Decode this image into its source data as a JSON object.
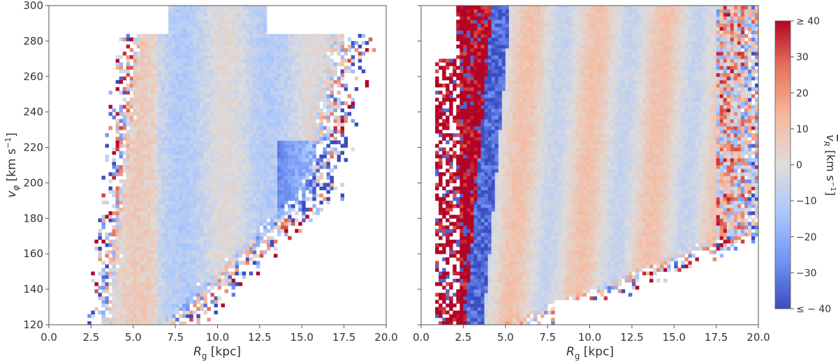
{
  "chart_data": [
    {
      "type": "heatmap",
      "panel": "left",
      "xlabel_main": "R",
      "xlabel_sub": "g",
      "xlabel_unit": " [kpc]",
      "ylabel_main": "v",
      "ylabel_sub": "φ",
      "ylabel_unit_pre": " [km s",
      "ylabel_unit_sup": "−1",
      "ylabel_unit_post": "]",
      "xlim": [
        0.0,
        20.0
      ],
      "ylim": [
        120,
        300
      ],
      "xticks": [
        "0.0",
        "2.5",
        "5.0",
        "7.5",
        "10.0",
        "12.5",
        "15.0",
        "17.5",
        "20.0"
      ],
      "yticks": [
        "120",
        "140",
        "160",
        "180",
        "200",
        "220",
        "240",
        "260",
        "280",
        "300"
      ],
      "color_quantity": "mean radial velocity v̄_R (km/s)",
      "features": "dense cloud spanning R≈3.5–15 kpc; warm (positive v_R) ridges near R≈5–6 and ≈10–11 kpc, cool (negative) ridges near R≈8–9 and ≈14–15 kpc; noisy red/blue edges"
    },
    {
      "type": "heatmap",
      "panel": "right",
      "xlabel_main": "R",
      "xlabel_sub": "g",
      "xlabel_unit": " [kpc]",
      "xlim": [
        0.0,
        20.0
      ],
      "ylim": [
        120,
        300
      ],
      "xticks": [
        "0.0",
        "2.5",
        "5.0",
        "7.5",
        "10.0",
        "12.5",
        "15.0",
        "17.5",
        "20.0"
      ],
      "color_quantity": "mean radial velocity v̄_R (km/s)",
      "features": "strong red band at R≈1–2.5 kpc, blue band at R≈3–4 kpc, broad diagonal cloud with alternating warm/cool ridges"
    }
  ],
  "colorbar": {
    "label_main": "v",
    "label_sub": "R",
    "label_unit_pre": " [km s",
    "label_unit_sup": "−1",
    "label_unit_post": "]",
    "range": [
      -40,
      40
    ],
    "ticks": [
      "≥ 40",
      "30",
      "20",
      "10",
      "0",
      "−10",
      "−20",
      "−30",
      "≤ − 40"
    ],
    "colormap": "coolwarm",
    "colors": [
      "#3b4cc0",
      "#6f92f3",
      "#aac7fd",
      "#dddcdc",
      "#f7b89c",
      "#e7745b",
      "#b40426"
    ]
  }
}
